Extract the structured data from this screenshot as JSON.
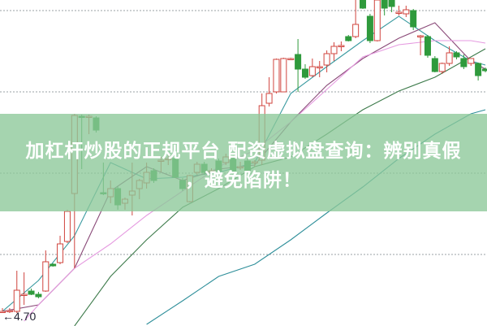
{
  "banner": {
    "line1": "加杠杆炒股的正规平台 配资虚拟盘查询：辨别真假",
    "line2": "，避免陷阱！"
  },
  "chart_data": {
    "type": "candlestick",
    "title": "",
    "grid": true,
    "grid_style": "dotted",
    "grid_levels": [
      5.05,
      5.55,
      6.05,
      6.55
    ],
    "ylim": [
      4.61,
      6.615
    ],
    "price_marker": {
      "label": "4.70",
      "value": 4.7,
      "arrow": "←"
    },
    "colors": {
      "up": "#d0443e",
      "down": "#2f9a3c",
      "grid": "#9aa0a6"
    },
    "candles_ohlc": [
      [
        4.7,
        4.72,
        4.69,
        4.7
      ],
      [
        4.7,
        4.72,
        4.69,
        4.705
      ],
      [
        4.7,
        4.95,
        4.69,
        4.83
      ],
      [
        4.8,
        4.94,
        4.74,
        4.805
      ],
      [
        4.825,
        4.84,
        4.8,
        4.805
      ],
      [
        4.805,
        4.82,
        4.78,
        4.79
      ],
      [
        4.825,
        5.075,
        4.82,
        5.005
      ],
      [
        4.99,
        4.995,
        4.975,
        4.98
      ],
      [
        5.0,
        5.165,
        4.99,
        5.115
      ],
      [
        5.13,
        5.325,
        5.12,
        5.315
      ],
      [
        5.425,
        5.915,
        4.965,
        5.905
      ],
      [
        5.9,
        5.91,
        5.575,
        5.895
      ],
      [
        5.9,
        5.91,
        5.79,
        5.9
      ],
      [
        5.89,
        5.9,
        5.8,
        5.815
      ],
      [
        5.43,
        5.615,
        5.415,
        5.425
      ],
      [
        5.405,
        5.505,
        5.365,
        5.455
      ],
      [
        5.455,
        5.47,
        5.325,
        5.355
      ],
      [
        5.365,
        5.4,
        5.325,
        5.39
      ],
      [
        5.415,
        5.615,
        5.29,
        5.44
      ],
      [
        5.455,
        5.515,
        5.39,
        5.505
      ],
      [
        5.49,
        5.615,
        5.455,
        5.555
      ],
      [
        5.565,
        5.58,
        5.49,
        5.505
      ],
      [
        5.63,
        5.65,
        5.555,
        5.63
      ],
      [
        5.64,
        5.66,
        5.6,
        5.64
      ],
      [
        5.64,
        5.65,
        5.52,
        5.525
      ],
      [
        5.505,
        5.52,
        5.44,
        5.455
      ],
      [
        5.375,
        5.54,
        5.37,
        5.535
      ],
      [
        5.555,
        5.62,
        5.54,
        5.605
      ],
      [
        5.605,
        5.62,
        5.54,
        5.555
      ],
      [
        5.565,
        5.58,
        5.55,
        5.565
      ],
      [
        5.625,
        5.64,
        5.55,
        5.565
      ],
      [
        5.615,
        5.67,
        5.6,
        5.65
      ],
      [
        5.64,
        5.66,
        5.54,
        5.555
      ],
      [
        5.59,
        5.62,
        5.57,
        5.59
      ],
      [
        5.625,
        5.64,
        5.55,
        5.565
      ],
      [
        5.615,
        5.63,
        5.59,
        5.62
      ],
      [
        5.63,
        6.04,
        5.6,
        5.965
      ],
      [
        5.98,
        6.14,
        5.96,
        6.04
      ],
      [
        6.05,
        6.255,
        6.04,
        6.25
      ],
      [
        6.05,
        6.26,
        6.05,
        6.255
      ],
      [
        6.255,
        6.26,
        6.25,
        6.255
      ],
      [
        6.28,
        6.375,
        6.05,
        6.19
      ],
      [
        6.19,
        6.22,
        6.13,
        6.14
      ],
      [
        6.15,
        6.255,
        6.14,
        6.205
      ],
      [
        6.205,
        6.24,
        6.14,
        6.205
      ],
      [
        6.215,
        6.305,
        6.17,
        6.285
      ],
      [
        6.285,
        6.355,
        6.24,
        6.33
      ],
      [
        6.335,
        6.36,
        6.3,
        6.335
      ],
      [
        6.39,
        6.4,
        6.36,
        6.365
      ],
      [
        6.39,
        6.62,
        6.38,
        6.465
      ],
      [
        6.615,
        6.62,
        6.56,
        6.565
      ],
      [
        6.515,
        6.53,
        6.35,
        6.365
      ],
      [
        6.365,
        6.62,
        6.36,
        6.615
      ],
      [
        6.615,
        6.62,
        6.52,
        6.565
      ],
      [
        6.615,
        6.62,
        6.54,
        6.575
      ],
      [
        6.54,
        6.58,
        6.52,
        6.54
      ],
      [
        6.53,
        6.58,
        6.51,
        6.555
      ],
      [
        6.55,
        6.56,
        6.43,
        6.45
      ],
      [
        6.395,
        6.4,
        6.275,
        6.395
      ],
      [
        6.39,
        6.4,
        6.26,
        6.275
      ],
      [
        6.255,
        6.27,
        6.17,
        6.175
      ],
      [
        6.175,
        6.23,
        6.16,
        6.225
      ],
      [
        6.225,
        6.33,
        6.21,
        6.29
      ],
      [
        6.29,
        6.3,
        6.25,
        6.265
      ],
      [
        6.255,
        6.28,
        6.19,
        6.205
      ],
      [
        6.225,
        6.25,
        6.21,
        6.255
      ],
      [
        6.225,
        6.23,
        6.12,
        6.15
      ],
      [
        6.19,
        6.2,
        6.17,
        6.18
      ]
    ],
    "moving_averages": [
      {
        "color": "#3a9aa0",
        "indices": [
          0,
          5,
          10,
          15,
          20,
          25,
          30,
          35,
          40,
          45,
          50,
          55,
          60,
          65,
          67
        ],
        "values": [
          4.7,
          4.89,
          5.165,
          5.615,
          5.515,
          5.525,
          5.555,
          5.615,
          6.04,
          6.205,
          6.365,
          6.515,
          6.365,
          6.24,
          6.215
        ]
      },
      {
        "color": "#8a4a78",
        "indices": [
          0,
          5,
          10,
          15,
          20,
          25,
          30,
          35,
          40,
          45,
          50,
          55,
          60,
          65,
          67
        ],
        "values": [
          4.7,
          4.74,
          4.965,
          5.44,
          5.59,
          5.505,
          5.575,
          5.6,
          5.865,
          6.09,
          6.255,
          6.38,
          6.475,
          6.24,
          6.19
        ]
      },
      {
        "color": "#e59ae0",
        "indices": [
          3,
          5,
          10,
          15,
          20,
          25,
          30,
          35,
          40,
          45,
          50,
          55,
          60,
          65,
          67
        ],
        "values": [
          4.64,
          4.74,
          4.965,
          5.115,
          5.29,
          5.44,
          5.59,
          5.69,
          5.865,
          6.065,
          6.265,
          6.34,
          6.365,
          6.365,
          6.35
        ]
      },
      {
        "color": "#3c7a4a",
        "indices": [
          10,
          15,
          20,
          25,
          30,
          35,
          40,
          45,
          50,
          55,
          60,
          65,
          67
        ],
        "values": [
          4.61,
          4.915,
          5.14,
          5.34,
          5.455,
          5.59,
          5.65,
          5.79,
          5.94,
          6.055,
          6.14,
          6.265,
          6.315
        ]
      },
      {
        "color": "#2f8f9a",
        "indices": [
          20,
          25,
          30,
          35,
          40,
          45,
          50,
          55,
          60,
          65,
          67
        ],
        "values": [
          4.62,
          4.765,
          4.915,
          4.99,
          5.14,
          5.305,
          5.465,
          5.64,
          5.79,
          5.915,
          5.94
        ]
      }
    ]
  }
}
